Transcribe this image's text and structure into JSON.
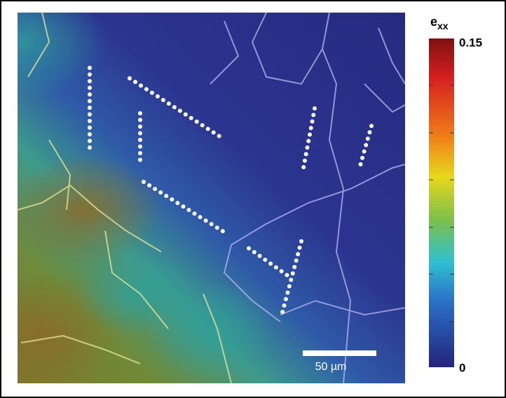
{
  "colorbar": {
    "label": "e",
    "label_sub": "xx",
    "max_label": "0.15",
    "min_label": "0"
  },
  "scale_bar": {
    "label": "50 µm"
  }
}
